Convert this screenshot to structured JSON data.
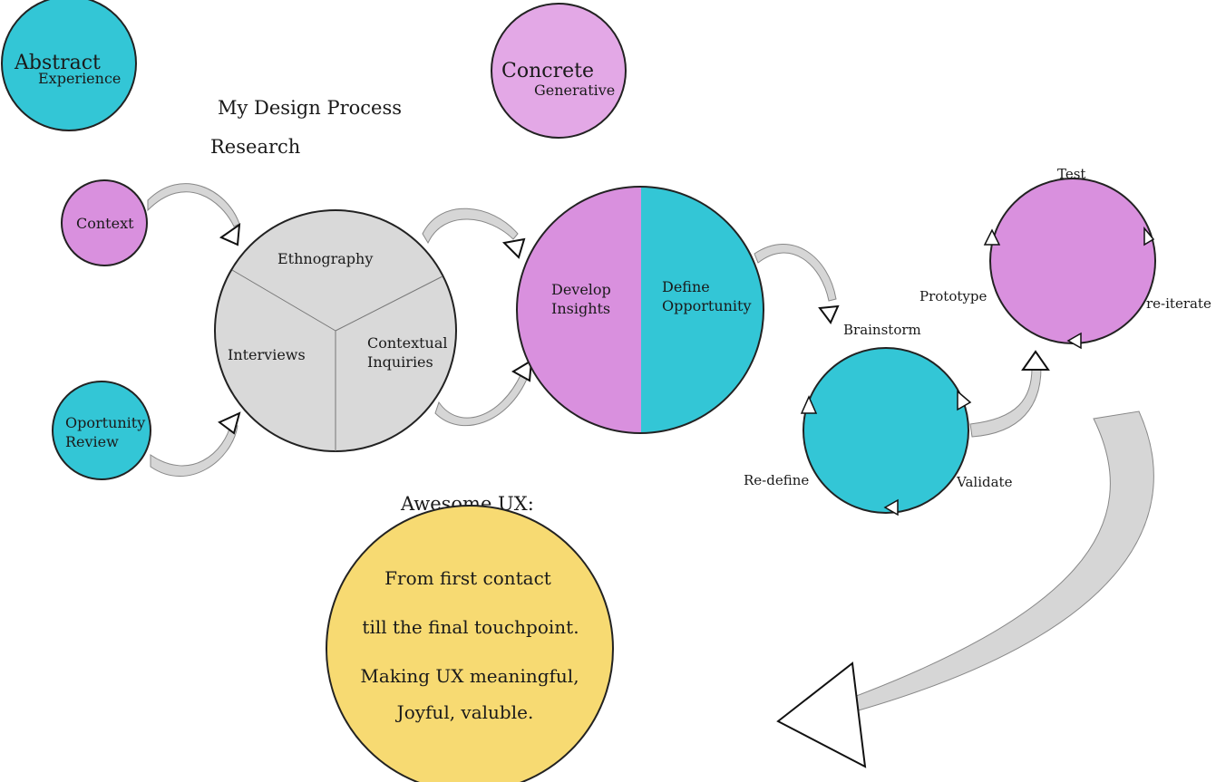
{
  "legend": {
    "abstract": {
      "title": "Abstract",
      "subtitle": "Experience"
    },
    "concrete": {
      "title": "Concrete",
      "subtitle": "Generative"
    }
  },
  "headings": {
    "title": "My Design Process",
    "research": "Research",
    "awesome": "Awesome UX:"
  },
  "inputs": {
    "context": "Context",
    "review_line1": "Oportunity",
    "review_line2": "Review"
  },
  "research_circle": {
    "ethnography": "Ethnography",
    "interviews": "Interviews",
    "contextual_line1": "Contextual",
    "contextual_line2": "Inquiries"
  },
  "insights_circle": {
    "develop_line1": "Develop",
    "develop_line2": "Insights",
    "define_line1": "Define",
    "define_line2": "Opportunity"
  },
  "brainstorm_cycle": {
    "brainstorm": "Brainstorm",
    "validate": "Validate",
    "redefine": "Re-define"
  },
  "test_cycle": {
    "test": "Test",
    "reiterate": "re-iterate",
    "prototype": "Prototype"
  },
  "awesome_ux": {
    "line1": "From first contact",
    "line2": "till the final touchpoint.",
    "line3": "Making UX meaningful,",
    "line4": "Joyful, valuble."
  },
  "colors": {
    "abstract": "#33c6d6",
    "concrete": "#d990de",
    "concrete_light": "#e3a8e6",
    "research": "#d9d9d9",
    "awesome": "#f7da72",
    "arrow_fill": "#d6d6d6"
  }
}
